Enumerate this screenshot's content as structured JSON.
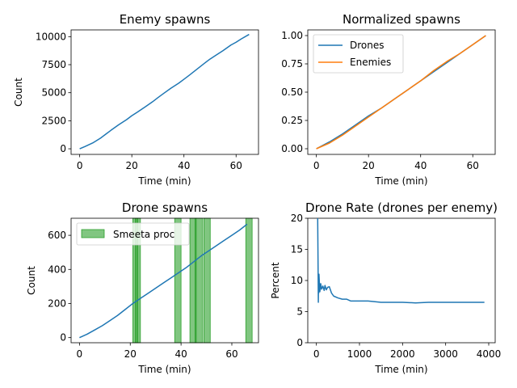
{
  "chart_data": [
    {
      "type": "line",
      "title": "Enemy spawns",
      "xlabel": "Time (min)",
      "ylabel": "Count",
      "xlim": [
        -3.3,
        68.6
      ],
      "ylim": [
        -500,
        10600
      ],
      "xticks": [
        0,
        20,
        40,
        60
      ],
      "xtick_labels": [
        "0",
        "20",
        "40",
        "60"
      ],
      "yticks": [
        0,
        2500,
        5000,
        7500,
        10000
      ],
      "ytick_labels": [
        "0",
        "2500",
        "5000",
        "7500",
        "10000"
      ],
      "grid": false,
      "series": [
        {
          "color": "#1f77b4",
          "x": [
            0,
            2,
            5,
            8,
            10,
            12,
            15,
            18,
            20,
            22,
            25,
            28,
            30,
            32,
            35,
            38,
            40,
            42,
            45,
            48,
            50,
            52,
            55,
            58,
            60,
            62,
            65
          ],
          "y": [
            0,
            200,
            520,
            950,
            1300,
            1650,
            2150,
            2600,
            2950,
            3250,
            3720,
            4200,
            4560,
            4900,
            5400,
            5850,
            6200,
            6550,
            7100,
            7650,
            8000,
            8300,
            8750,
            9250,
            9500,
            9800,
            10200
          ]
        }
      ]
    },
    {
      "type": "line",
      "title": "Normalized spawns",
      "xlabel": "Time (min)",
      "ylabel": "",
      "xlim": [
        -3.3,
        68.6
      ],
      "ylim": [
        -0.05,
        1.05
      ],
      "xticks": [
        0,
        20,
        40,
        60
      ],
      "xtick_labels": [
        "0",
        "20",
        "40",
        "60"
      ],
      "yticks": [
        0,
        0.25,
        0.5,
        0.75,
        1.0
      ],
      "ytick_labels": [
        "0.00",
        "0.25",
        "0.50",
        "0.75",
        "1.00"
      ],
      "grid": false,
      "legend": "top-left",
      "series": [
        {
          "name": "Drones",
          "color": "#1f77b4",
          "x": [
            0,
            5,
            10,
            15,
            20,
            25,
            30,
            35,
            40,
            45,
            50,
            55,
            60,
            65
          ],
          "y": [
            0,
            0.06,
            0.13,
            0.21,
            0.29,
            0.36,
            0.44,
            0.52,
            0.6,
            0.68,
            0.76,
            0.84,
            0.92,
            1.0
          ]
        },
        {
          "name": "Enemies",
          "color": "#ff7f0e",
          "x": [
            0,
            5,
            10,
            15,
            20,
            25,
            30,
            35,
            40,
            45,
            50,
            55,
            60,
            65
          ],
          "y": [
            0,
            0.05,
            0.12,
            0.2,
            0.28,
            0.36,
            0.44,
            0.52,
            0.6,
            0.69,
            0.77,
            0.84,
            0.92,
            1.0
          ]
        }
      ]
    },
    {
      "type": "line",
      "title": "Drone spawns",
      "xlabel": "Time (min)",
      "ylabel": "Count",
      "xlim": [
        -3.3,
        70.5
      ],
      "ylim": [
        -30,
        700
      ],
      "xticks": [
        0,
        20,
        40,
        60
      ],
      "xtick_labels": [
        "0",
        "20",
        "40",
        "60"
      ],
      "yticks": [
        0,
        200,
        400,
        600
      ],
      "ytick_labels": [
        "0",
        "200",
        "400",
        "600"
      ],
      "grid": false,
      "legend": "top-left",
      "series": [
        {
          "color": "#1f77b4",
          "x": [
            0,
            3,
            6,
            9,
            12,
            15,
            18,
            21,
            24,
            27,
            30,
            33,
            36,
            39,
            42,
            45,
            48,
            51,
            54,
            57,
            60,
            63,
            66
          ],
          "y": [
            0,
            20,
            45,
            70,
            100,
            130,
            165,
            200,
            230,
            260,
            290,
            320,
            350,
            380,
            410,
            445,
            480,
            510,
            540,
            570,
            600,
            630,
            665
          ]
        }
      ],
      "spans": {
        "name": "Smeeta proc",
        "color": "#2ca02c",
        "ranges": [
          [
            21,
            23
          ],
          [
            22,
            24
          ],
          [
            37.5,
            40
          ],
          [
            43.5,
            46
          ],
          [
            45.5,
            48.5
          ],
          [
            49,
            51.5
          ],
          [
            65.5,
            68
          ]
        ]
      }
    },
    {
      "type": "line",
      "title": "Drone Rate (drones per enemy)",
      "xlabel": "Time (min)",
      "ylabel": "Percent",
      "xlim": [
        -200,
        4150
      ],
      "ylim": [
        0,
        20
      ],
      "xticks": [
        0,
        1000,
        2000,
        3000,
        4000
      ],
      "xtick_labels": [
        "0",
        "1000",
        "2000",
        "3000",
        "4000"
      ],
      "yticks": [
        0,
        5,
        10,
        15,
        20
      ],
      "ytick_labels": [
        "0",
        "5",
        "10",
        "15",
        "20"
      ],
      "grid": false,
      "series": [
        {
          "color": "#1f77b4",
          "x": [
            30,
            40,
            45,
            50,
            55,
            60,
            70,
            80,
            100,
            120,
            150,
            180,
            200,
            230,
            260,
            300,
            350,
            400,
            500,
            600,
            700,
            800,
            1000,
            1200,
            1500,
            1800,
            2000,
            2300,
            2600,
            3000,
            3300,
            3600,
            3900
          ],
          "y": [
            20,
            11.5,
            6.5,
            10.5,
            8.0,
            11.0,
            9.5,
            8.2,
            9.5,
            8.6,
            9.1,
            8.4,
            9.2,
            8.5,
            8.9,
            9.0,
            8.0,
            7.5,
            7.2,
            7.0,
            7.0,
            6.7,
            6.7,
            6.7,
            6.5,
            6.5,
            6.5,
            6.4,
            6.5,
            6.5,
            6.5,
            6.5,
            6.5
          ]
        }
      ]
    }
  ]
}
